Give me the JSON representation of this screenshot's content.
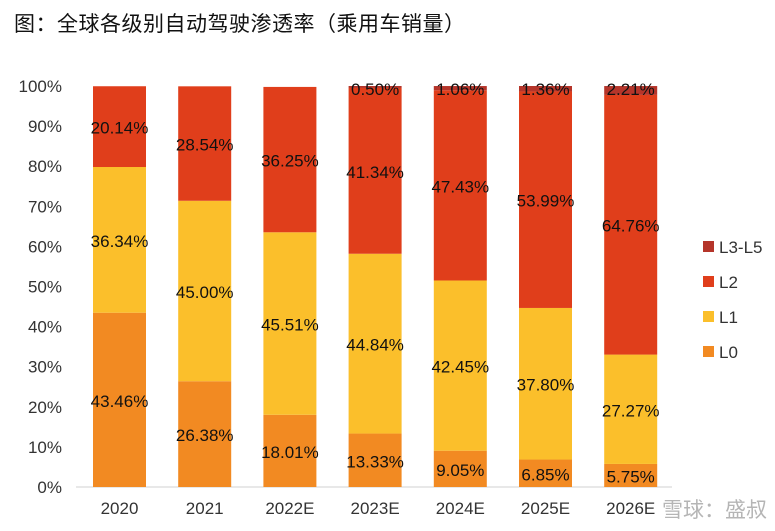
{
  "title": "图：全球各级别自动驾驶渗透率（乘用车销量）",
  "watermark": "雪球：盛叔",
  "chart_data": {
    "type": "bar",
    "stacked": true,
    "title": "图：全球各级别自动驾驶渗透率（乘用车销量）",
    "categories": [
      "2020",
      "2021",
      "2022E",
      "2023E",
      "2024E",
      "2025E",
      "2026E"
    ],
    "series": [
      {
        "name": "L0",
        "color": "#F28A22",
        "values": [
          43.46,
          26.38,
          18.01,
          13.33,
          9.05,
          6.85,
          5.75
        ]
      },
      {
        "name": "L1",
        "color": "#FBBF2B",
        "values": [
          36.34,
          45.0,
          45.51,
          44.84,
          42.45,
          37.8,
          27.27
        ]
      },
      {
        "name": "L2",
        "color": "#E03E1B",
        "values": [
          20.14,
          28.54,
          36.25,
          41.34,
          47.43,
          53.99,
          64.76
        ]
      },
      {
        "name": "L3-L5",
        "color": "#B5352A",
        "values": [
          null,
          null,
          null,
          0.5,
          1.06,
          1.36,
          2.21
        ]
      }
    ],
    "ylim": [
      0,
      100
    ],
    "yticks": [
      "0%",
      "10%",
      "20%",
      "30%",
      "40%",
      "50%",
      "60%",
      "70%",
      "80%",
      "90%",
      "100%"
    ],
    "legend": "right",
    "grid": false
  }
}
